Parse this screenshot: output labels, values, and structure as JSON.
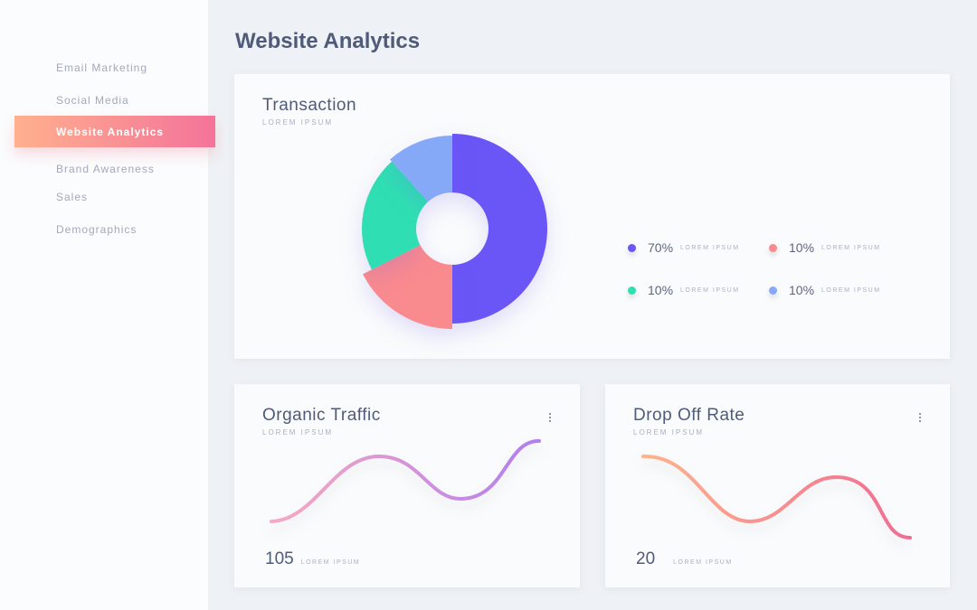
{
  "sidebar": {
    "items": [
      {
        "label": "Email Marketing"
      },
      {
        "label": "Social Media"
      },
      {
        "label": "Website Analytics",
        "active": true
      },
      {
        "label": "Brand Awareness"
      },
      {
        "label": "Sales"
      },
      {
        "label": "Demographics"
      }
    ]
  },
  "page_title": "Website Analytics",
  "transaction": {
    "title": "Transaction",
    "subtitle": "LOREM IPSUM",
    "legend": [
      {
        "value": "70%",
        "label": "LOREM IPSUM",
        "color": "#6a55f6"
      },
      {
        "value": "10%",
        "label": "LOREM IPSUM",
        "color": "#f98a8e"
      },
      {
        "value": "10%",
        "label": "LOREM IPSUM",
        "color": "#2fdfb3"
      },
      {
        "value": "10%",
        "label": "LOREM IPSUM",
        "color": "#85a9f7"
      }
    ]
  },
  "organic": {
    "title": "Organic Traffic",
    "subtitle": "LOREM IPSUM",
    "value": "105",
    "value_label": "LOREM IPSUM",
    "colors": [
      "#f8a9c0",
      "#b27ef0"
    ]
  },
  "dropoff": {
    "title": "Drop Off Rate",
    "subtitle": "LOREM IPSUM",
    "value": "20",
    "value_label": "LOREM IPSUM",
    "colors": [
      "#ffb38c",
      "#f06c92"
    ]
  }
}
